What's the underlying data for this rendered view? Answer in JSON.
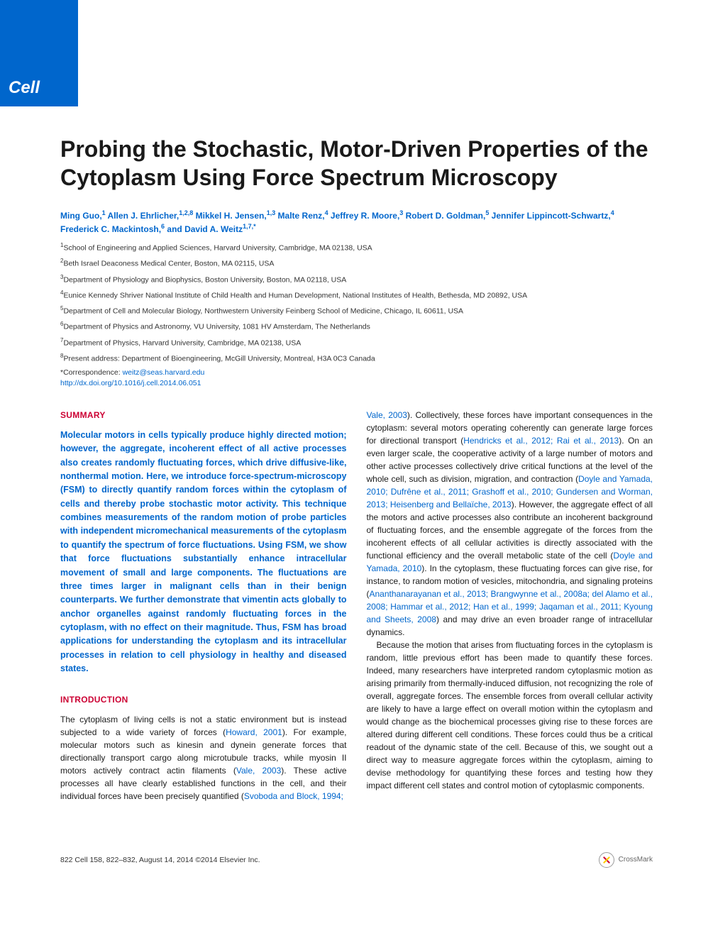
{
  "brand": "Cell",
  "title": "Probing the Stochastic, Motor-Driven Properties of the Cytoplasm Using Force Spectrum Microscopy",
  "authors_html": "Ming Guo,<sup>1</sup> Allen J. Ehrlicher,<sup>1,2,8</sup> Mikkel H. Jensen,<sup>1,3</sup> Malte Renz,<sup>4</sup> Jeffrey R. Moore,<sup>3</sup> Robert D. Goldman,<sup>5</sup> Jennifer Lippincott-Schwartz,<sup>4</sup> Frederick C. Mackintosh,<sup>6</sup> and David A. Weitz<sup>1,7,*</sup>",
  "affiliations": [
    "<sup>1</sup>School of Engineering and Applied Sciences, Harvard University, Cambridge, MA 02138, USA",
    "<sup>2</sup>Beth Israel Deaconess Medical Center, Boston, MA 02115, USA",
    "<sup>3</sup>Department of Physiology and Biophysics, Boston University, Boston, MA 02118, USA",
    "<sup>4</sup>Eunice Kennedy Shriver National Institute of Child Health and Human Development, National Institutes of Health, Bethesda, MD 20892, USA",
    "<sup>5</sup>Department of Cell and Molecular Biology, Northwestern University Feinberg School of Medicine, Chicago, IL 60611, USA",
    "<sup>6</sup>Department of Physics and Astronomy, VU University, 1081 HV Amsterdam, The Netherlands",
    "<sup>7</sup>Department of Physics, Harvard University, Cambridge, MA 02138, USA",
    "<sup>8</sup>Present address: Department of Bioengineering, McGill University, Montreal, H3A 0C3 Canada"
  ],
  "correspondence_label": "*Correspondence: ",
  "correspondence_email": "weitz@seas.harvard.edu",
  "doi": "http://dx.doi.org/10.1016/j.cell.2014.06.051",
  "sections": {
    "summary_header": "SUMMARY",
    "summary_text": "Molecular motors in cells typically produce highly directed motion; however, the aggregate, incoherent effect of all active processes also creates randomly fluctuating forces, which drive diffusive-like, nonthermal motion. Here, we introduce force-spectrum-microscopy (FSM) to directly quantify random forces within the cytoplasm of cells and thereby probe stochastic motor activity. This technique combines measurements of the random motion of probe particles with independent micromechanical measurements of the cytoplasm to quantify the spectrum of force fluctuations. Using FSM, we show that force fluctuations substantially enhance intracellular movement of small and large components. The fluctuations are three times larger in malignant cells than in their benign counterparts. We further demonstrate that vimentin acts globally to anchor organelles against randomly fluctuating forces in the cytoplasm, with no effect on their magnitude. Thus, FSM has broad applications for understanding the cytoplasm and its intracellular processes in relation to cell physiology in healthy and diseased states.",
    "intro_header": "INTRODUCTION",
    "intro_p1": "The cytoplasm of living cells is not a static environment but is instead subjected to a wide variety of forces (<span class=\"cite\">Howard, 2001</span>). For example, molecular motors such as kinesin and dynein generate forces that directionally transport cargo along microtubule tracks, while myosin II motors actively contract actin filaments (<span class=\"cite\">Vale, 2003</span>). These active processes all have clearly established functions in the cell, and their individual forces have been precisely quantified (<span class=\"cite\">Svoboda and Block, 1994;</span>",
    "col2_p1": "<span class=\"cite\">Vale, 2003</span>). Collectively, these forces have important consequences in the cytoplasm: several motors operating coherently can generate large forces for directional transport (<span class=\"cite\">Hendricks et al., 2012; Rai et al., 2013</span>). On an even larger scale, the cooperative activity of a large number of motors and other active processes collectively drive critical functions at the level of the whole cell, such as division, migration, and contraction (<span class=\"cite\">Doyle and Yamada, 2010; Dufrêne et al., 2011; Grashoff et al., 2010; Gundersen and Worman, 2013; Heisenberg and Bellaïche, 2013</span>). However, the aggregate effect of all the motors and active processes also contribute an incoherent background of fluctuating forces, and the ensemble aggregate of the forces from the incoherent effects of all cellular activities is directly associated with the functional efficiency and the overall metabolic state of the cell (<span class=\"cite\">Doyle and Yamada, 2010</span>). In the cytoplasm, these fluctuating forces can give rise, for instance, to random motion of vesicles, mitochondria, and signaling proteins (<span class=\"cite\">Ananthanarayanan et al., 2013; Brangwynne et al., 2008a; del Alamo et al., 2008; Hammar et al., 2012; Han et al., 1999; Jaqaman et al., 2011; Kyoung and Sheets, 2008</span>) and may drive an even broader range of intracellular dynamics.",
    "col2_p2": "Because the motion that arises from fluctuating forces in the cytoplasm is random, little previous effort has been made to quantify these forces. Indeed, many researchers have interpreted random cytoplasmic motion as arising primarily from thermally-induced diffusion, not recognizing the role of overall, aggregate forces. The ensemble forces from overall cellular activity are likely to have a large effect on overall motion within the cytoplasm and would change as the biochemical processes giving rise to these forces are altered during different cell conditions. These forces could thus be a critical readout of the dynamic state of the cell. Because of this, we sought out a direct way to measure aggregate forces within the cytoplasm, aiming to devise methodology for quantifying these forces and testing how they impact different cell states and control motion of cytoplasmic components."
  },
  "footer": {
    "citation": "822   Cell 158, 822–832, August 14, 2014 ©2014 Elsevier Inc.",
    "crossmark": "CrossMark"
  },
  "colors": {
    "brand_bg": "#0066cc",
    "link": "#0066cc",
    "header_red": "#cc0033",
    "text": "#1a1a1a"
  }
}
